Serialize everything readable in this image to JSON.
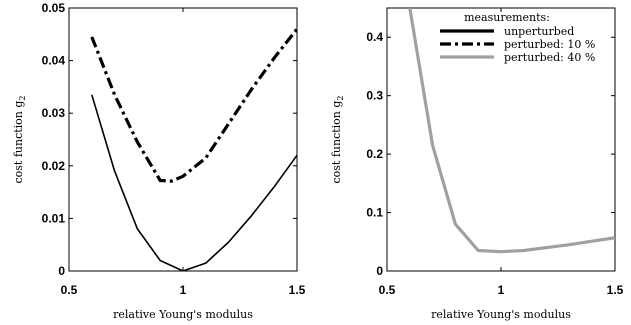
{
  "chart_data": [
    {
      "type": "line",
      "xlabel": "relative Young's modulus",
      "ylabel": "cost function g",
      "ylabel_sub": "2",
      "xlim": [
        0.5,
        1.5
      ],
      "ylim": [
        0,
        0.05
      ],
      "xticks": [
        "0.5",
        "1",
        "1.5"
      ],
      "yticks": [
        "0",
        "0.01",
        "0.02",
        "0.03",
        "0.04",
        "0.05"
      ],
      "series": [
        {
          "style": "solid-thin",
          "color": "#000000",
          "x": [
            0.6,
            0.7,
            0.8,
            0.9,
            1.0,
            1.1,
            1.2,
            1.3,
            1.4,
            1.5
          ],
          "y": [
            0.0335,
            0.019,
            0.008,
            0.002,
            0.0,
            0.0015,
            0.0055,
            0.0105,
            0.016,
            0.022
          ]
        },
        {
          "style": "dashdot-thick",
          "color": "#000000",
          "x": [
            0.6,
            0.7,
            0.8,
            0.9,
            0.95,
            1.0,
            1.1,
            1.2,
            1.3,
            1.4,
            1.5
          ],
          "y": [
            0.0445,
            0.0335,
            0.0245,
            0.0172,
            0.0171,
            0.018,
            0.0215,
            0.028,
            0.0345,
            0.0405,
            0.046
          ]
        }
      ]
    },
    {
      "type": "line",
      "xlabel": "relative Young's modulus",
      "ylabel": "cost function g",
      "ylabel_sub": "2",
      "xlim": [
        0.5,
        1.5
      ],
      "ylim": [
        0,
        0.45
      ],
      "xticks": [
        "0.5",
        "1",
        "1.5"
      ],
      "yticks": [
        "0",
        "0.1",
        "0.2",
        "0.3",
        "0.4"
      ],
      "legend": {
        "title": "measurements:",
        "position": "top-right",
        "entries": [
          {
            "label": "unperturbed",
            "style": "solid-thick",
            "color": "#000000"
          },
          {
            "label": "perturbed: 10 %",
            "style": "dashdot-thick",
            "color": "#000000"
          },
          {
            "label": "perturbed: 40 %",
            "style": "solid-thick",
            "color": "#a0a0a0"
          }
        ]
      },
      "series": [
        {
          "style": "solid-thick",
          "color": "#a0a0a0",
          "x": [
            0.6,
            0.7,
            0.8,
            0.9,
            1.0,
            1.1,
            1.2,
            1.3,
            1.4,
            1.5
          ],
          "y": [
            0.45,
            0.215,
            0.08,
            0.035,
            0.033,
            0.035,
            0.04,
            0.045,
            0.051,
            0.057
          ]
        }
      ]
    }
  ]
}
